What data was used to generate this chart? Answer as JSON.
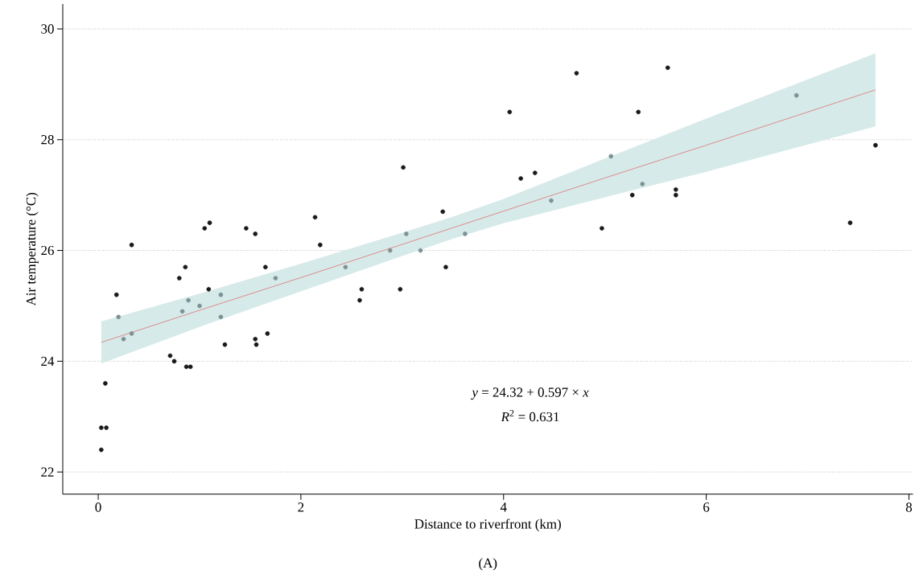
{
  "chart_data": {
    "type": "scatter",
    "xlabel": "Distance to riverfront (km)",
    "ylabel": "Air temperature (°C)",
    "xlim": [
      -0.35,
      8.04
    ],
    "ylim": [
      21.6,
      30.45
    ],
    "xticks": [
      0,
      2,
      4,
      6,
      8
    ],
    "yticks": [
      22,
      24,
      26,
      28,
      30
    ],
    "grid": "y",
    "annotations": [
      "*y* = 24.32 + 0.597 × *x*",
      "*R*$^{2}$ = 0.631",
      "(A)"
    ],
    "series": [
      {
        "marker": "circle",
        "x": [
          0.03,
          0.03,
          0.08,
          0.07,
          0.18,
          0.2,
          0.25,
          0.33,
          0.33,
          0.71,
          0.75,
          0.8,
          0.83,
          0.86,
          0.87,
          0.89,
          0.91,
          1.0,
          1.05,
          1.09,
          1.1,
          1.21,
          1.21,
          1.25,
          1.46,
          1.55,
          1.55,
          1.56,
          1.65,
          1.67,
          1.75,
          2.14,
          2.19,
          2.44,
          2.58,
          2.6,
          2.88,
          2.98,
          3.01,
          3.04,
          3.18,
          3.4,
          3.43,
          3.62,
          4.06,
          4.17,
          4.31,
          4.47,
          4.72,
          4.97,
          5.06,
          5.27,
          5.33,
          5.37,
          5.62,
          5.7,
          5.7,
          6.89,
          7.42,
          7.67
        ],
        "values": [
          22.4,
          22.8,
          22.8,
          23.6,
          25.2,
          24.8,
          24.4,
          24.5,
          26.1,
          24.1,
          24.0,
          25.5,
          24.9,
          25.7,
          23.9,
          25.1,
          23.9,
          25.0,
          26.4,
          25.3,
          26.5,
          25.2,
          24.8,
          24.3,
          26.4,
          26.3,
          24.4,
          24.3,
          25.7,
          24.5,
          25.5,
          26.6,
          26.1,
          25.7,
          25.1,
          25.3,
          26.0,
          25.3,
          27.5,
          26.3,
          26.0,
          26.7,
          25.7,
          26.3,
          28.5,
          27.3,
          27.4,
          26.9,
          29.2,
          26.4,
          27.7,
          27.0,
          28.5,
          27.2,
          29.3,
          27.1,
          27.0,
          28.8,
          26.5,
          27.9
        ],
        "colors": [
          "#1a1a1a",
          "#1a1a1a",
          "#1a1a1a",
          "#1a1a1a",
          "#1a1a1a",
          "#7d9393",
          "#7d9393",
          "#7d9393",
          "#1a1a1a",
          "#1a1a1a",
          "#1a1a1a",
          "#1a1a1a",
          "#7d9393",
          "#1a1a1a",
          "#1a1a1a",
          "#7d9393",
          "#1a1a1a",
          "#7d9393",
          "#1a1a1a",
          "#1a1a1a",
          "#1a1a1a",
          "#7d9393",
          "#7d9393",
          "#1a1a1a",
          "#1a1a1a",
          "#1a1a1a",
          "#1a1a1a",
          "#1a1a1a",
          "#1a1a1a",
          "#1a1a1a",
          "#7d9393",
          "#1a1a1a",
          "#1a1a1a",
          "#7d9393",
          "#1a1a1a",
          "#1a1a1a",
          "#7d9393",
          "#1a1a1a",
          "#1a1a1a",
          "#7d9393",
          "#7d9393",
          "#1a1a1a",
          "#1a1a1a",
          "#7d9393",
          "#1a1a1a",
          "#1a1a1a",
          "#1a1a1a",
          "#7d9393",
          "#1a1a1a",
          "#1a1a1a",
          "#7d9393",
          "#1a1a1a",
          "#1a1a1a",
          "#7d9393",
          "#1a1a1a",
          "#1a1a1a",
          "#1a1a1a",
          "#7d9393",
          "#1a1a1a",
          "#1a1a1a"
        ]
      },
      {
        "type": "line",
        "color": "#dc8a8a",
        "marker": "none",
        "x": [
          0.03,
          1,
          2,
          3,
          3.5,
          4,
          5,
          6,
          7.67
        ],
        "values": [
          24.34,
          24.92,
          25.51,
          26.11,
          26.41,
          26.71,
          27.31,
          27.9,
          28.9
        ],
        "lower": [
          23.96,
          24.62,
          25.26,
          25.9,
          26.21,
          26.49,
          26.96,
          27.42,
          28.24
        ],
        "upper": [
          24.72,
          25.22,
          25.76,
          26.32,
          26.61,
          26.93,
          27.66,
          28.38,
          29.56
        ]
      }
    ]
  }
}
